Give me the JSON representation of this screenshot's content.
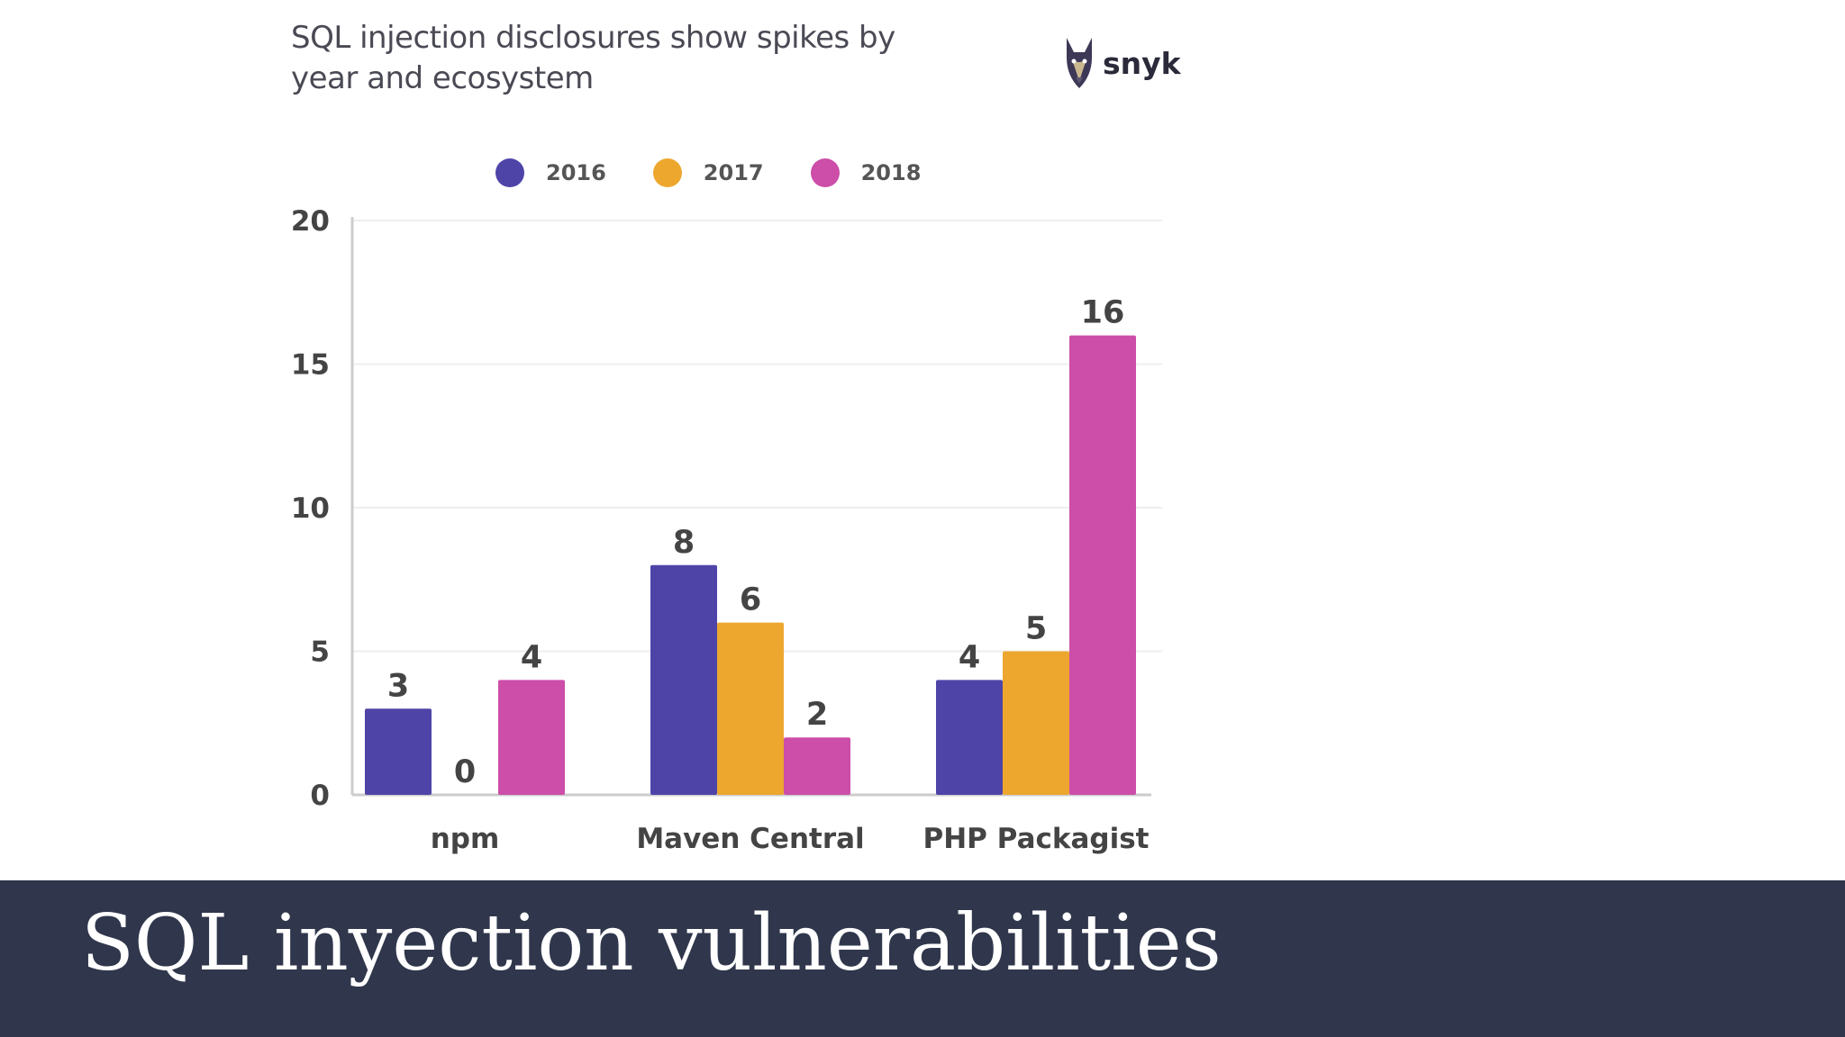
{
  "slide": {
    "banner_title": "SQL inyection vulnerabilities"
  },
  "brand": {
    "name": "snyk",
    "icon": "doberman-logo-icon"
  },
  "colors": {
    "banner_bg": "#30374c",
    "series_2016": "#4e44a8",
    "series_2017": "#eda72f",
    "series_2018": "#cc4ea9",
    "axis": "#cccccc",
    "grid": "#eeeeee",
    "label": "#444444"
  },
  "chart_data": {
    "type": "bar",
    "title": "SQL injection disclosures show spikes by year and ecosystem",
    "xlabel": "",
    "ylabel": "",
    "ylim": [
      0,
      20
    ],
    "yticks": [
      0,
      5,
      10,
      15,
      20
    ],
    "grid": true,
    "legend_position": "top",
    "categories": [
      "npm",
      "Maven Central",
      "PHP Packagist"
    ],
    "series": [
      {
        "name": "2016",
        "color": "#4e44a8",
        "values": [
          3,
          8,
          4
        ]
      },
      {
        "name": "2017",
        "color": "#eda72f",
        "values": [
          0,
          6,
          5
        ]
      },
      {
        "name": "2018",
        "color": "#cc4ea9",
        "values": [
          4,
          2,
          16
        ]
      }
    ]
  }
}
